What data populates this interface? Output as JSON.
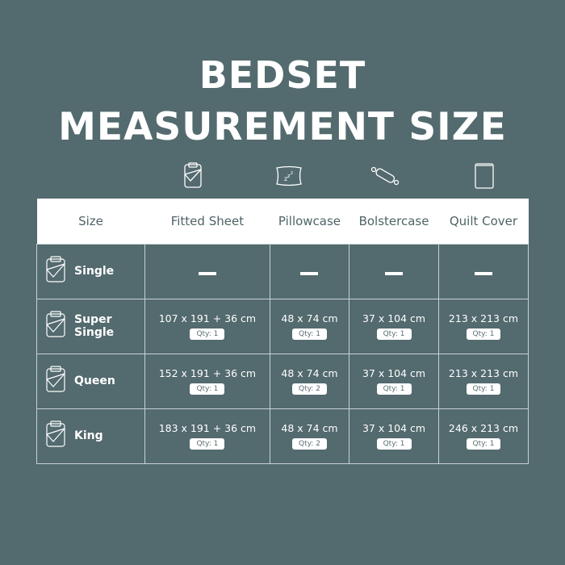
{
  "title_line1": "BEDSET",
  "title_line2": "MEASUREMENT SIZE",
  "headers": [
    "Size",
    "Fitted Sheet",
    "Pillowcase",
    "Bolstercase",
    "Quilt Cover"
  ],
  "rows": [
    {
      "size": "Single",
      "cells": [
        {
          "dim": "—",
          "qty": ""
        },
        {
          "dim": "—",
          "qty": ""
        },
        {
          "dim": "—",
          "qty": ""
        },
        {
          "dim": "—",
          "qty": ""
        }
      ]
    },
    {
      "size": "Super Single",
      "cells": [
        {
          "dim": "107 x 191 + 36 cm",
          "qty": "Qty: 1"
        },
        {
          "dim": "48 x 74 cm",
          "qty": "Qty: 1"
        },
        {
          "dim": "37 x 104 cm",
          "qty": "Qty: 1"
        },
        {
          "dim": "213 x 213 cm",
          "qty": "Qty: 1"
        }
      ]
    },
    {
      "size": "Queen",
      "cells": [
        {
          "dim": "152 x 191 + 36 cm",
          "qty": "Qty: 1"
        },
        {
          "dim": "48 x 74 cm",
          "qty": "Qty: 2"
        },
        {
          "dim": "37 x 104 cm",
          "qty": "Qty: 1"
        },
        {
          "dim": "213 x 213 cm",
          "qty": "Qty: 1"
        }
      ]
    },
    {
      "size": "King",
      "cells": [
        {
          "dim": "183 x 191 + 36 cm",
          "qty": "Qty: 1"
        },
        {
          "dim": "48 x 74 cm",
          "qty": "Qty: 2"
        },
        {
          "dim": "37 x 104 cm",
          "qty": "Qty: 1"
        },
        {
          "dim": "246 x 213 cm",
          "qty": "Qty: 1"
        }
      ]
    }
  ],
  "colors": {
    "background": "#536a6e",
    "header_bg": "#ffffff",
    "header_text": "#4e6367"
  }
}
